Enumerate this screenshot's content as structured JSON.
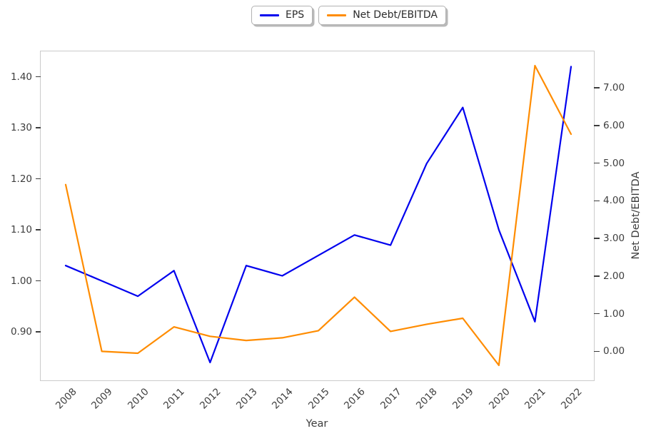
{
  "chart_data": {
    "type": "line",
    "title": "",
    "x": [
      2008,
      2009,
      2010,
      2011,
      2012,
      2013,
      2014,
      2015,
      2016,
      2017,
      2018,
      2019,
      2020,
      2021,
      2022
    ],
    "series": [
      {
        "name": "EPS",
        "axis": "left",
        "color": "#0000ee",
        "values": [
          1.03,
          1.0,
          0.97,
          1.02,
          0.84,
          1.03,
          1.01,
          1.05,
          1.09,
          1.07,
          1.23,
          1.34,
          1.1,
          0.92,
          1.42
        ]
      },
      {
        "name": "Net Debt/EBITDA",
        "axis": "right",
        "color": "#ff8c00",
        "values": [
          4.43,
          0.0,
          -0.05,
          0.65,
          0.4,
          0.29,
          0.36,
          0.55,
          1.44,
          0.53,
          0.72,
          0.88,
          -0.37,
          7.59,
          5.77
        ]
      }
    ],
    "x_axis": {
      "label": "Year",
      "ticks": [
        "2008",
        "2009",
        "2010",
        "2011",
        "2012",
        "2013",
        "2014",
        "2015",
        "2016",
        "2017",
        "2018",
        "2019",
        "2020",
        "2021",
        "2022"
      ]
    },
    "left_axis": {
      "label": "",
      "tick_values": [
        0.9,
        1.0,
        1.1,
        1.2,
        1.3,
        1.4
      ],
      "tick_labels": [
        "0.90",
        "1.00",
        "1.10",
        "1.20",
        "1.30",
        "1.40"
      ],
      "range": [
        0.805,
        1.45
      ]
    },
    "right_axis": {
      "label": "Net Debt/EBITDA",
      "tick_values": [
        0,
        1,
        2,
        3,
        4,
        5,
        6,
        7
      ],
      "tick_labels": [
        "0.00",
        "1.00",
        "2.00",
        "3.00",
        "4.00",
        "5.00",
        "6.00",
        "7.00"
      ],
      "range": [
        -0.77,
        7.97
      ]
    },
    "legend": {
      "position": "top-center",
      "entries": [
        {
          "label": "EPS",
          "color": "#0000ee"
        },
        {
          "label": "Net Debt/EBITDA",
          "color": "#ff8c00"
        }
      ]
    },
    "grid": false
  }
}
